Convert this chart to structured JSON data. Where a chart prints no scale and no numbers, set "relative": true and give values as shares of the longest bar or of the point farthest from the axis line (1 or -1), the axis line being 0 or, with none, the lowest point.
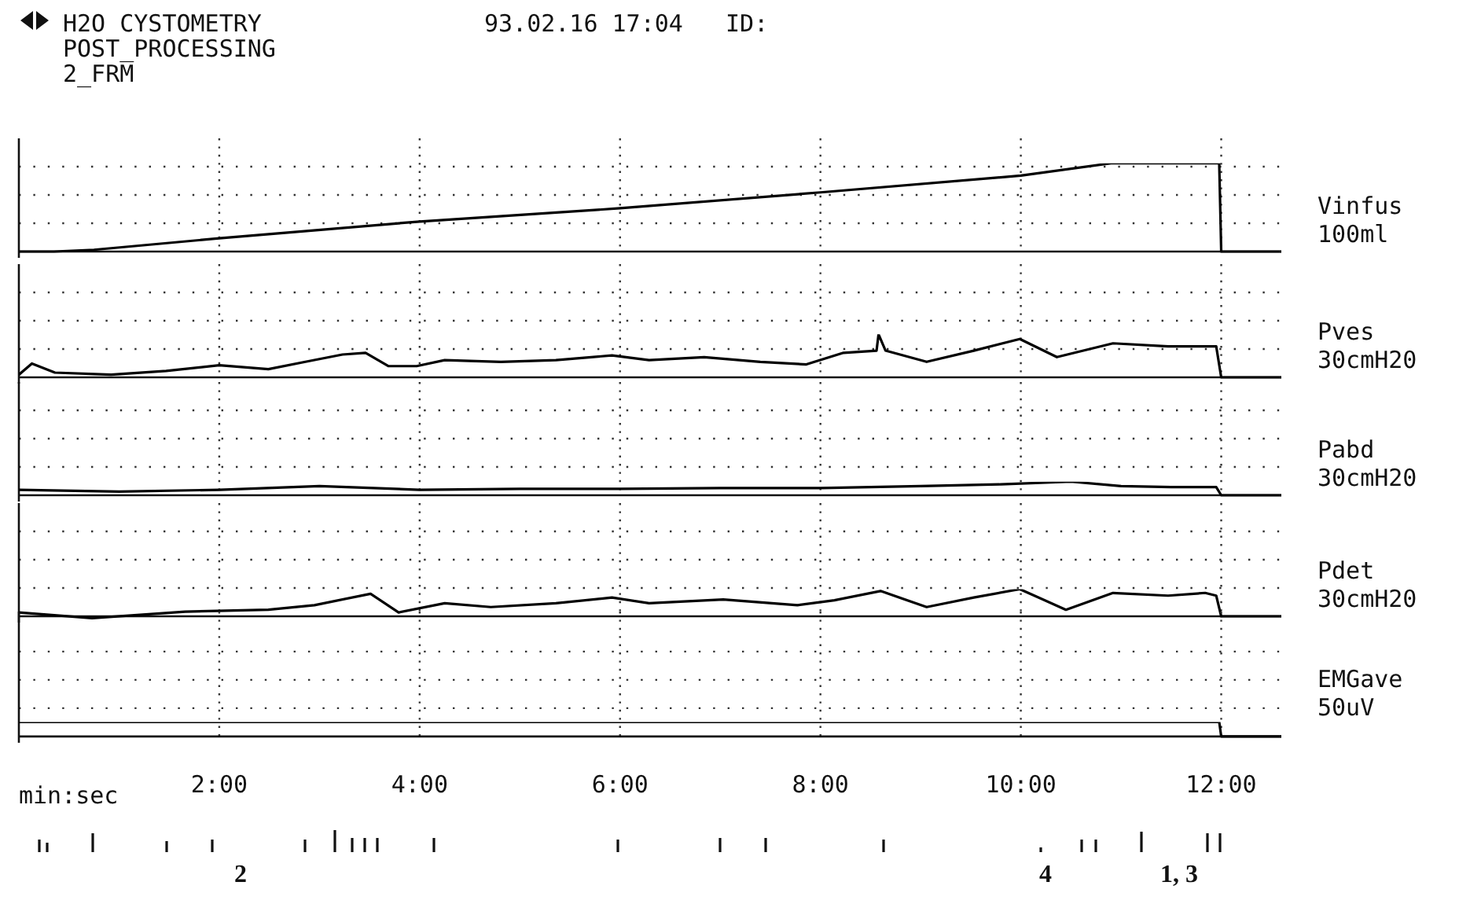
{
  "chart_data": [
    {
      "type": "line",
      "title": "H2O CYSTOMETRY",
      "subtitle": "POST_PROCESSING",
      "annotations": [
        "93.02.16 17:04   ID:",
        "2_FRM"
      ],
      "relative": true,
      "grid": true,
      "tick_labels": false,
      "ylabel": "100ml",
      "xlim": [
        0,
        12.6
      ],
      "xticks": [
        2,
        4,
        6,
        8,
        10,
        12
      ],
      "x": [
        0,
        0.35,
        0.75,
        2,
        4,
        6,
        8,
        10,
        10.9,
        11.98,
        12,
        12.6
      ],
      "series": [
        {
          "name": "Vinfus",
          "color": "#000000",
          "values": [
            0,
            0,
            0.02,
            0.15,
            0.34,
            0.49,
            0.67,
            0.86,
            1,
            1,
            0,
            0
          ]
        }
      ]
    },
    {
      "type": "line",
      "relative": true,
      "grid": true,
      "tick_labels": false,
      "ylabel": "30cmH20",
      "xlim": [
        0,
        12.6
      ],
      "xticks": [
        2,
        4,
        6,
        8,
        10,
        12
      ],
      "x": [
        0,
        0.13,
        0.36,
        0.92,
        1.47,
        2,
        2.49,
        2.86,
        3.23,
        3.46,
        3.69,
        3.97,
        4.25,
        4.81,
        5.36,
        5.92,
        6.29,
        6.84,
        7.4,
        7.86,
        8.23,
        8.56,
        8.58,
        8.65,
        9.06,
        9.53,
        9.99,
        10.36,
        10.92,
        11.47,
        11.95,
        12,
        12.6
      ],
      "series": [
        {
          "name": "Pves",
          "color": "#000000",
          "values": [
            0.06,
            0.32,
            0.11,
            0.06,
            0.15,
            0.28,
            0.19,
            0.36,
            0.53,
            0.57,
            0.26,
            0.26,
            0.4,
            0.36,
            0.4,
            0.51,
            0.4,
            0.47,
            0.36,
            0.3,
            0.57,
            0.62,
            1,
            0.62,
            0.36,
            0.62,
            0.89,
            0.47,
            0.79,
            0.72,
            0.72,
            0,
            0
          ]
        }
      ]
    },
    {
      "type": "line",
      "relative": true,
      "grid": true,
      "tick_labels": false,
      "ylabel": "30cmH20",
      "xlim": [
        0,
        12.6
      ],
      "xticks": [
        2,
        4,
        6,
        8,
        10,
        12
      ],
      "x": [
        0,
        1,
        2,
        3,
        4,
        5,
        6,
        7,
        8,
        9,
        9.8,
        10.5,
        11,
        11.5,
        11.95,
        12,
        12.6
      ],
      "series": [
        {
          "name": "Pabd",
          "color": "#000000",
          "values": [
            0.4,
            0.27,
            0.4,
            0.67,
            0.4,
            0.47,
            0.47,
            0.53,
            0.53,
            0.67,
            0.8,
            1,
            0.67,
            0.6,
            0.6,
            0,
            0
          ]
        }
      ]
    },
    {
      "type": "line",
      "relative": true,
      "grid": true,
      "tick_labels": false,
      "ylabel": "30cmH20",
      "xlim": [
        0,
        12.6
      ],
      "xticks": [
        2,
        4,
        6,
        8,
        10,
        12
      ],
      "x": [
        0,
        0.73,
        1.66,
        2.49,
        2.95,
        3.51,
        3.79,
        4.25,
        4.71,
        5.36,
        5.92,
        6.29,
        7.03,
        7.77,
        8.14,
        8.6,
        9.06,
        9.53,
        9.99,
        10.45,
        10.92,
        11.47,
        11.84,
        11.95,
        12,
        12.6
      ],
      "series": [
        {
          "name": "Pdet",
          "color": "#000000",
          "values": [
            0.14,
            -0.07,
            0.17,
            0.24,
            0.41,
            0.83,
            0.14,
            0.48,
            0.34,
            0.48,
            0.69,
            0.48,
            0.62,
            0.41,
            0.59,
            0.93,
            0.34,
            0.69,
            1,
            0.24,
            0.86,
            0.76,
            0.86,
            0.76,
            0,
            0
          ]
        }
      ]
    },
    {
      "type": "line",
      "relative": true,
      "grid": true,
      "tick_labels": "x",
      "ylabel": "50uV",
      "xlabel": "min:sec",
      "xlim": [
        0,
        12.6
      ],
      "xticks": [
        {
          "value": 2,
          "label": "2:00"
        },
        {
          "value": 4,
          "label": "4:00"
        },
        {
          "value": 6,
          "label": "6:00"
        },
        {
          "value": 8,
          "label": "8:00"
        },
        {
          "value": 10,
          "label": "10:00"
        },
        {
          "value": 12,
          "label": "12:00"
        }
      ],
      "annotations": [
        "2",
        "4",
        "1, 3"
      ],
      "x": [
        0,
        11.98,
        12,
        12.6
      ],
      "series": [
        {
          "name": "EMGave",
          "color": "#000000",
          "values": [
            1,
            1,
            0,
            0
          ]
        }
      ]
    }
  ]
}
